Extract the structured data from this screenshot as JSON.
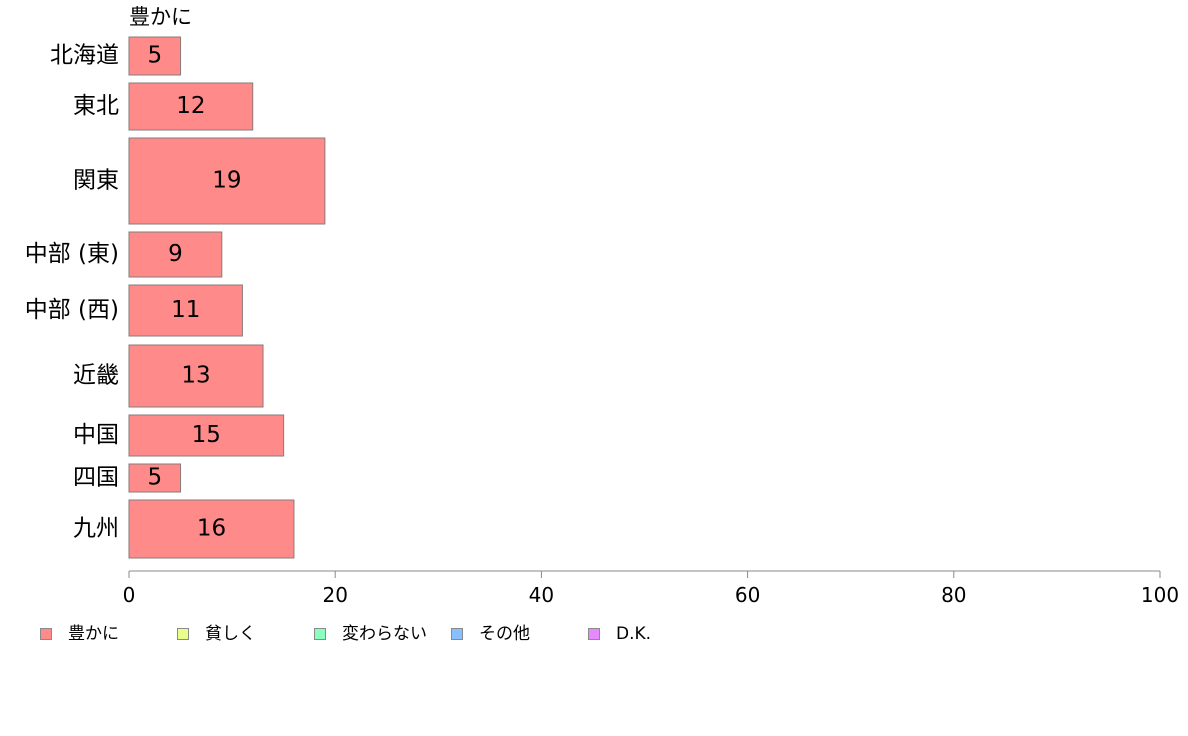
{
  "chart_data": {
    "type": "bar",
    "orientation": "horizontal",
    "series_header": "豊かに",
    "categories": [
      "北海道",
      "東北",
      "関東",
      "中部 (東)",
      "中部 (西)",
      "近畿",
      "中国",
      "四国",
      "九州"
    ],
    "series": [
      {
        "name": "豊かに",
        "values": [
          5,
          12,
          19,
          9,
          11,
          13,
          15,
          5,
          16
        ],
        "color": "#FF8A8A"
      }
    ],
    "xlim": [
      0,
      100
    ],
    "x_ticks": [
      0,
      20,
      40,
      60,
      80,
      100
    ],
    "grid": false,
    "legend_position": "bottom-left"
  },
  "legend": {
    "items": [
      {
        "label": "豊かに",
        "color": "#FF8A8A"
      },
      {
        "label": "貧しく",
        "color": "#E8FF8A"
      },
      {
        "label": "変わらない",
        "color": "#8AFFBF"
      },
      {
        "label": "その他",
        "color": "#8ABFFF"
      },
      {
        "label": "D.K.",
        "color": "#E88AFF"
      }
    ]
  }
}
